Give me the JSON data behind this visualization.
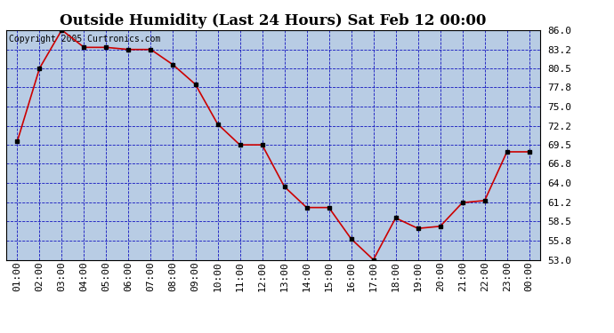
{
  "title": "Outside Humidity (Last 24 Hours) Sat Feb 12 00:00",
  "copyright": "Copyright 2005 Curtronics.com",
  "x_labels": [
    "01:00",
    "02:00",
    "03:00",
    "04:00",
    "05:00",
    "06:00",
    "07:00",
    "08:00",
    "09:00",
    "10:00",
    "11:00",
    "12:00",
    "13:00",
    "14:00",
    "15:00",
    "16:00",
    "17:00",
    "18:00",
    "19:00",
    "20:00",
    "21:00",
    "22:00",
    "23:00",
    "00:00"
  ],
  "x_values": [
    1,
    2,
    3,
    4,
    5,
    6,
    7,
    8,
    9,
    10,
    11,
    12,
    13,
    14,
    15,
    16,
    17,
    18,
    19,
    20,
    21,
    22,
    23,
    24
  ],
  "y_values": [
    70.0,
    80.5,
    86.0,
    83.5,
    83.5,
    83.2,
    83.2,
    81.0,
    78.2,
    72.5,
    69.5,
    69.5,
    63.5,
    60.5,
    60.5,
    56.0,
    53.0,
    59.0,
    57.5,
    57.8,
    61.2,
    61.5,
    68.5,
    68.5
  ],
  "ylim_min": 53.0,
  "ylim_max": 86.0,
  "yticks": [
    53.0,
    55.8,
    58.5,
    61.2,
    64.0,
    66.8,
    69.5,
    72.2,
    75.0,
    77.8,
    80.5,
    83.2,
    86.0
  ],
  "line_color": "#cc0000",
  "marker_color": "#000000",
  "plot_bg_color": "#b8cce4",
  "fig_bg_color": "#ffffff",
  "grid_color": "#0000bb",
  "title_fontsize": 12,
  "tick_fontsize": 8,
  "copyright_fontsize": 7
}
